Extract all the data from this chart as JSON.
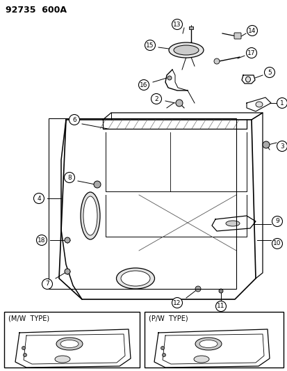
{
  "title": "92735  600A",
  "bg_color": "#ffffff",
  "line_color": "#000000",
  "title_fontsize": 9,
  "label_fontsize": 6.5,
  "mw_label": "(M/W  TYPE)",
  "pw_label": "(P/W  TYPE)"
}
